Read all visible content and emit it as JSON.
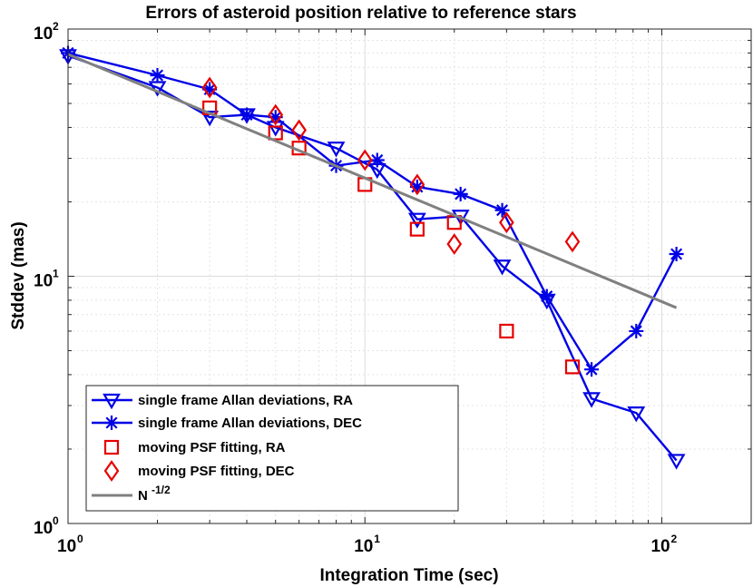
{
  "chart_data": {
    "type": "scatter",
    "title": "Errors of asteroid position relative to reference stars",
    "xlabel": "Integration Time (sec)",
    "ylabel": "Stddev (mas)",
    "xscale": "log",
    "yscale": "log",
    "xlim": [
      1,
      200
    ],
    "ylim": [
      1,
      100
    ],
    "grid": "on",
    "legend_location": "bottom-left",
    "x_ticks": [
      {
        "base": "10",
        "exp": "0",
        "value": 1
      },
      {
        "base": "10",
        "exp": "1",
        "value": 10
      },
      {
        "base": "10",
        "exp": "2",
        "value": 100
      }
    ],
    "y_ticks": [
      {
        "base": "10",
        "exp": "0",
        "value": 1
      },
      {
        "base": "10",
        "exp": "1",
        "value": 10
      },
      {
        "base": "10",
        "exp": "2",
        "value": 100
      }
    ],
    "series": [
      {
        "name": "single frame Allan deviations, RA",
        "color": "#0000e6",
        "marker": "triangle-down",
        "line": true,
        "x": [
          1,
          2,
          3,
          4,
          5,
          8,
          11,
          15,
          21,
          29,
          41,
          58,
          82,
          112
        ],
        "y": [
          78,
          58,
          44,
          45,
          40,
          33,
          27,
          17,
          17.5,
          11,
          8,
          3.2,
          2.8,
          1.8
        ]
      },
      {
        "name": "single frame Allan deviations, DEC",
        "color": "#0000e6",
        "marker": "asterisk",
        "line": true,
        "x": [
          1,
          2,
          3,
          4,
          5,
          8,
          11,
          15,
          21,
          29,
          41,
          58,
          82,
          112
        ],
        "y": [
          80,
          65,
          57,
          45,
          44,
          28,
          29.5,
          23,
          21.5,
          18.5,
          8.3,
          4.2,
          6,
          12.3
        ]
      },
      {
        "name": "moving PSF fitting, RA",
        "color": "#e60000",
        "marker": "square",
        "line": false,
        "x": [
          3,
          5,
          6,
          10,
          15,
          20,
          30,
          50
        ],
        "y": [
          48,
          38,
          33,
          23.5,
          15.5,
          16.5,
          6,
          4.3
        ]
      },
      {
        "name": "moving PSF fitting, DEC",
        "color": "#e60000",
        "marker": "diamond",
        "line": false,
        "x": [
          3,
          5,
          6,
          10,
          15,
          20,
          30,
          50
        ],
        "y": [
          58,
          45,
          39,
          29.5,
          23.5,
          13.5,
          16.5,
          13.8
        ]
      },
      {
        "name": "N",
        "name_superscript": "-1/2",
        "color": "#808080",
        "marker": "none",
        "line": true,
        "x": [
          1,
          112
        ],
        "y": [
          79,
          7.46
        ]
      }
    ]
  }
}
